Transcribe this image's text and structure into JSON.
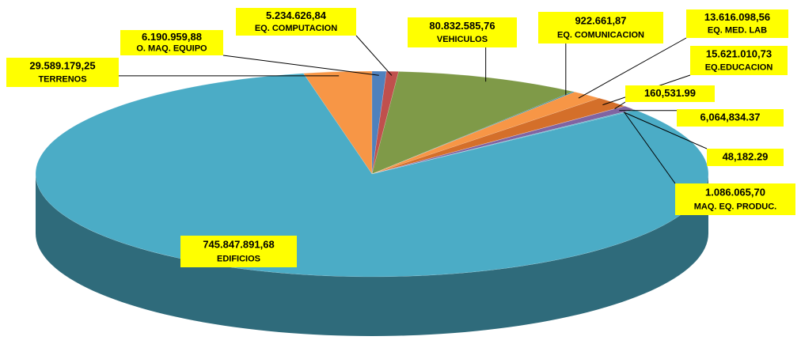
{
  "chart_data": {
    "type": "pie3d",
    "categories": [
      "TERRENOS",
      "O. MAQ. EQUIPO",
      "EQ. COMPUTACION",
      "VEHICULOS",
      "EQ. COMUNICACION",
      "EQ. MED. LAB",
      "EQ.EDUCACION",
      null,
      null,
      null,
      "MAQ. EQ. PRODUC.",
      "EDIFICIOS"
    ],
    "values": [
      29589179.25,
      6190959.88,
      5234626.84,
      80832585.76,
      922661.87,
      13616098.56,
      15621010.73,
      160531.99,
      6064834.37,
      48182.29,
      1086065.7,
      745847891.68
    ],
    "value_labels": [
      "29.589.179,25",
      "6.190.959,88",
      "5.234.626,84",
      "80.832.585,76",
      "922.661,87",
      "13.616.098,56",
      "15.621.010,73",
      "160,531.99",
      "6,064,834.37",
      "48,182.29",
      "1.086.065,70",
      "745.847.891,68"
    ],
    "colors": [
      "#f79646",
      "#4f81bd",
      "#c0504d",
      "#7f9a48",
      "#31859c",
      "#f79646",
      "#d46f2a",
      "#c0504d",
      "#8064a2",
      "#4f81bd",
      "#4bacc6",
      "#4bacc6"
    ]
  }
}
